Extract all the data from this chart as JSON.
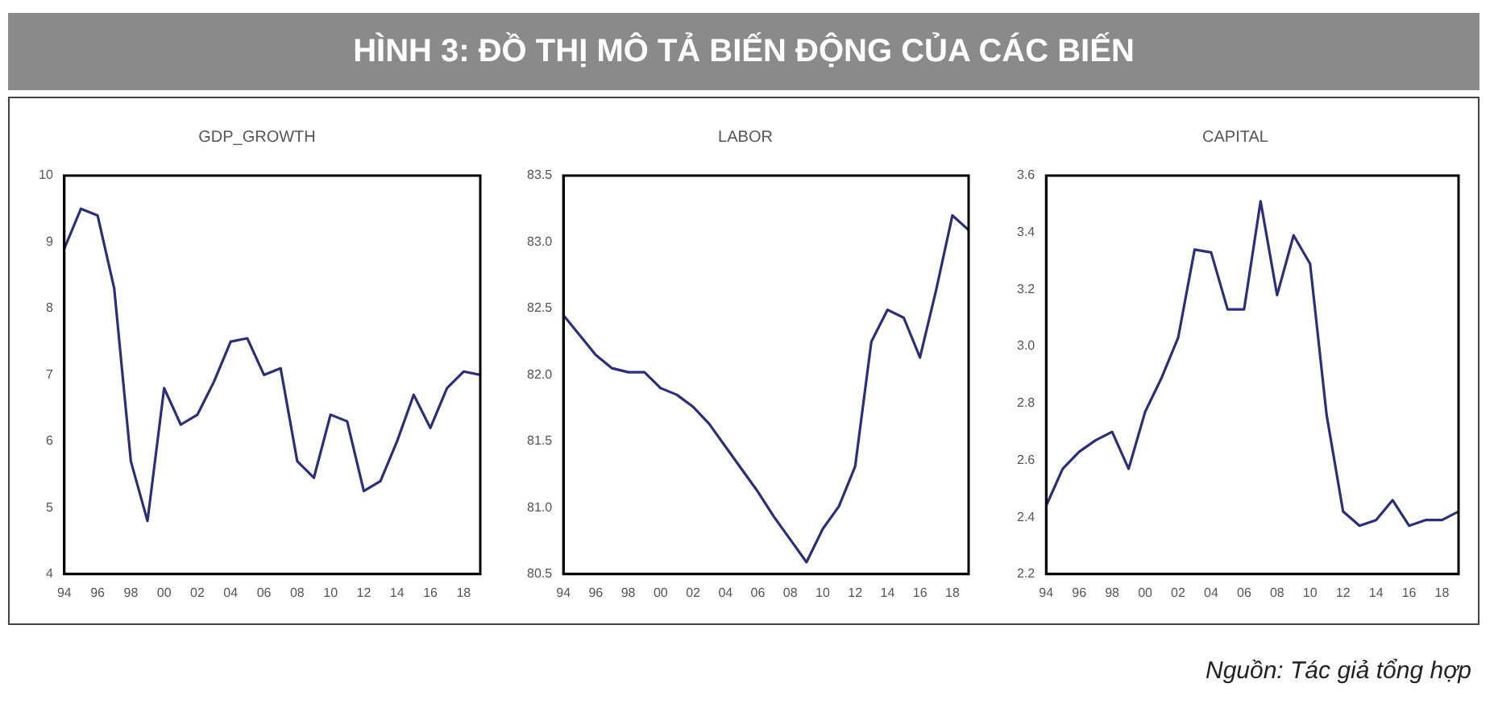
{
  "chart_data": [
    {
      "type": "line",
      "title": "GDP_GROWTH",
      "annotations": [
        "HÌNH 3: ĐỒ THỊ MÔ TẢ BIẾN ĐỘNG CỦA CÁC BIẾN",
        "Nguồn: Tác giả tổng hợp"
      ],
      "x": [
        1994,
        1995,
        1996,
        1997,
        1998,
        1999,
        2000,
        2001,
        2002,
        2003,
        2004,
        2005,
        2006,
        2007,
        2008,
        2009,
        2010,
        2011,
        2012,
        2013,
        2014,
        2015,
        2016,
        2017,
        2018,
        2019
      ],
      "series": [
        {
          "color": "#2b2f7a",
          "values": [
            8.9,
            9.5,
            9.4,
            8.3,
            5.7,
            4.8,
            6.8,
            6.25,
            6.4,
            6.9,
            7.5,
            7.55,
            7.0,
            7.1,
            5.7,
            5.45,
            6.4,
            6.3,
            5.25,
            5.4,
            6.0,
            6.7,
            6.2,
            6.8,
            7.05,
            7.0
          ]
        }
      ],
      "xlim": [
        1994,
        2019
      ],
      "xticks": [
        {
          "value": 1994,
          "label": "94"
        },
        {
          "value": 1996,
          "label": "96"
        },
        {
          "value": 1998,
          "label": "98"
        },
        {
          "value": 2000,
          "label": "00"
        },
        {
          "value": 2002,
          "label": "02"
        },
        {
          "value": 2004,
          "label": "04"
        },
        {
          "value": 2006,
          "label": "06"
        },
        {
          "value": 2008,
          "label": "08"
        },
        {
          "value": 2010,
          "label": "10"
        },
        {
          "value": 2012,
          "label": "12"
        },
        {
          "value": 2014,
          "label": "14"
        },
        {
          "value": 2016,
          "label": "16"
        },
        {
          "value": 2018,
          "label": "18"
        }
      ],
      "ylim": [
        4,
        10
      ],
      "yticks": [
        4,
        5,
        6,
        7,
        8,
        9,
        10
      ],
      "grid": false,
      "legend": false,
      "marker": "none",
      "line_style": "solid"
    },
    {
      "type": "line",
      "title": "LABOR",
      "x": [
        1994,
        1995,
        1996,
        1997,
        1998,
        1999,
        2000,
        2001,
        2002,
        2003,
        2004,
        2005,
        2006,
        2007,
        2008,
        2009,
        2010,
        2011,
        2012,
        2013,
        2014,
        2015,
        2016,
        2017,
        2018,
        2019
      ],
      "series": [
        {
          "color": "#2b2f7a",
          "values": [
            82.45,
            82.3,
            82.15,
            82.05,
            82.02,
            82.02,
            81.9,
            81.85,
            81.76,
            81.63,
            81.46,
            81.29,
            81.12,
            80.93,
            80.76,
            80.59,
            80.84,
            81.01,
            81.31,
            82.25,
            82.49,
            82.43,
            82.13,
            82.64,
            83.2,
            83.09
          ]
        }
      ],
      "xlim": [
        1994,
        2019
      ],
      "xticks": [
        {
          "value": 1994,
          "label": "94"
        },
        {
          "value": 1996,
          "label": "96"
        },
        {
          "value": 1998,
          "label": "98"
        },
        {
          "value": 2000,
          "label": "00"
        },
        {
          "value": 2002,
          "label": "02"
        },
        {
          "value": 2004,
          "label": "04"
        },
        {
          "value": 2006,
          "label": "06"
        },
        {
          "value": 2008,
          "label": "08"
        },
        {
          "value": 2010,
          "label": "10"
        },
        {
          "value": 2012,
          "label": "12"
        },
        {
          "value": 2014,
          "label": "14"
        },
        {
          "value": 2016,
          "label": "16"
        },
        {
          "value": 2018,
          "label": "18"
        }
      ],
      "ylim": [
        80.5,
        83.5
      ],
      "yticks": [
        80.5,
        {
          "value": 81,
          "label": "81.0"
        },
        81.5,
        {
          "value": 82,
          "label": "82.0"
        },
        82.5,
        {
          "value": 83,
          "label": "83.0"
        },
        83.5
      ],
      "grid": false,
      "legend": false,
      "marker": "none",
      "line_style": "solid"
    },
    {
      "type": "line",
      "title": "CAPITAL",
      "x": [
        1994,
        1995,
        1996,
        1997,
        1998,
        1999,
        2000,
        2001,
        2002,
        2003,
        2004,
        2005,
        2006,
        2007,
        2008,
        2009,
        2010,
        2011,
        2012,
        2013,
        2014,
        2015,
        2016,
        2017,
        2018,
        2019
      ],
      "series": [
        {
          "color": "#2b2f7a",
          "values": [
            2.44,
            2.57,
            2.63,
            2.67,
            2.7,
            2.57,
            2.77,
            2.89,
            3.03,
            3.34,
            3.33,
            3.13,
            3.13,
            3.51,
            3.18,
            3.39,
            3.29,
            2.76,
            2.42,
            2.37,
            2.39,
            2.46,
            2.37,
            2.39,
            2.39,
            2.42
          ]
        }
      ],
      "xlim": [
        1994,
        2019
      ],
      "xticks": [
        {
          "value": 1994,
          "label": "94"
        },
        {
          "value": 1996,
          "label": "96"
        },
        {
          "value": 1998,
          "label": "98"
        },
        {
          "value": 2000,
          "label": "00"
        },
        {
          "value": 2002,
          "label": "02"
        },
        {
          "value": 2004,
          "label": "04"
        },
        {
          "value": 2006,
          "label": "06"
        },
        {
          "value": 2008,
          "label": "08"
        },
        {
          "value": 2010,
          "label": "10"
        },
        {
          "value": 2012,
          "label": "12"
        },
        {
          "value": 2014,
          "label": "14"
        },
        {
          "value": 2016,
          "label": "16"
        },
        {
          "value": 2018,
          "label": "18"
        }
      ],
      "ylim": [
        2.2,
        3.6
      ],
      "yticks": [
        2.2,
        2.4,
        2.6,
        2.8,
        {
          "value": 3,
          "label": "3.0"
        },
        3.2,
        3.4,
        3.6
      ],
      "grid": false,
      "legend": false,
      "marker": "none",
      "line_style": "solid"
    }
  ]
}
